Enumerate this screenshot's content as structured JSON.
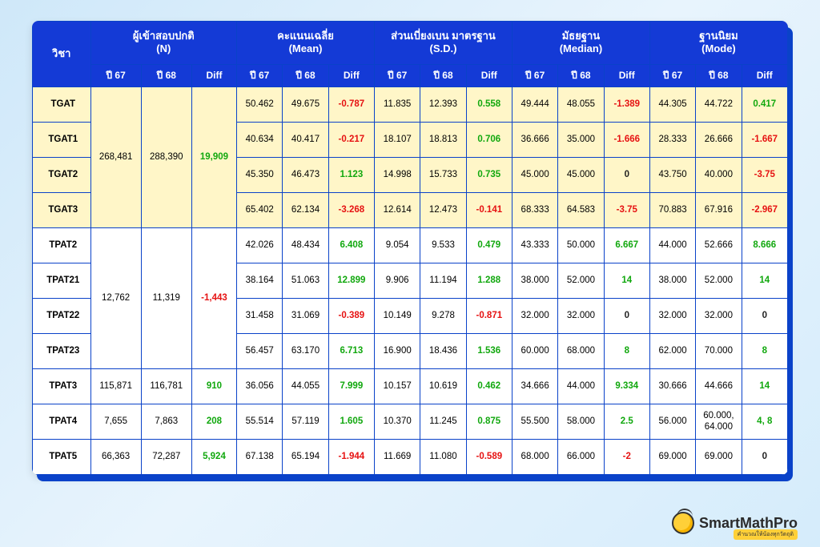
{
  "brand": {
    "name": "SmartMathPro",
    "tagline": "คำนวณให้น้องทุกวัตถุดิ"
  },
  "colors": {
    "accent": "#143ad6",
    "shadow": "#0a42c9",
    "highlight_bg": "#fff6c8",
    "pos": "#11a80e",
    "neg": "#e61212",
    "zero": "#222222",
    "card_bg": "#ffffff",
    "page_bg_from": "#cfe8f9",
    "page_bg_to": "#d5ecfb"
  },
  "head": {
    "subject": "วิชา",
    "groups": {
      "n": {
        "label_th": "ผู้เข้าสอบปกติ",
        "label_en": "(N)"
      },
      "mean": {
        "label_th": "คะแนนเฉลี่ย",
        "label_en": "(Mean)"
      },
      "sd": {
        "label_th": "ส่วนเบี่ยงเบน มาตรฐาน (S.D.)",
        "label_en": ""
      },
      "median": {
        "label_th": "มัธยฐาน",
        "label_en": "(Median)"
      },
      "mode": {
        "label_th": "ฐานนิยม",
        "label_en": "(Mode)"
      }
    },
    "sub": {
      "y67": "ปี 67",
      "y68": "ปี 68",
      "diff": "Diff"
    }
  },
  "n_groups": [
    {
      "rowspan": 4,
      "y67": "268,481",
      "y68": "288,390",
      "diff": "19,909",
      "diff_sign": "pos"
    },
    {
      "rowspan": 4,
      "y67": "12,762",
      "y68": "11,319",
      "diff": "-1,443",
      "diff_sign": "neg"
    },
    {
      "rowspan": 1,
      "y67": "115,871",
      "y68": "116,781",
      "diff": "910",
      "diff_sign": "pos"
    },
    {
      "rowspan": 1,
      "y67": "7,655",
      "y68": "7,863",
      "diff": "208",
      "diff_sign": "pos"
    },
    {
      "rowspan": 1,
      "y67": "66,363",
      "y68": "72,287",
      "diff": "5,924",
      "diff_sign": "pos"
    }
  ],
  "rows": [
    {
      "subj": "TGAT",
      "hl": true,
      "n_group": 0,
      "mean": [
        "50.462",
        "49.675",
        "-0.787",
        "neg"
      ],
      "sd": [
        "11.835",
        "12.393",
        "0.558",
        "pos"
      ],
      "median": [
        "49.444",
        "48.055",
        "-1.389",
        "neg"
      ],
      "mode": [
        "44.305",
        "44.722",
        "0.417",
        "pos"
      ]
    },
    {
      "subj": "TGAT1",
      "hl": true,
      "mean": [
        "40.634",
        "40.417",
        "-0.217",
        "neg"
      ],
      "sd": [
        "18.107",
        "18.813",
        "0.706",
        "pos"
      ],
      "median": [
        "36.666",
        "35.000",
        "-1.666",
        "neg"
      ],
      "mode": [
        "28.333",
        "26.666",
        "-1.667",
        "neg"
      ]
    },
    {
      "subj": "TGAT2",
      "hl": true,
      "mean": [
        "45.350",
        "46.473",
        "1.123",
        "pos"
      ],
      "sd": [
        "14.998",
        "15.733",
        "0.735",
        "pos"
      ],
      "median": [
        "45.000",
        "45.000",
        "0",
        "zero"
      ],
      "mode": [
        "43.750",
        "40.000",
        "-3.75",
        "neg"
      ]
    },
    {
      "subj": "TGAT3",
      "hl": true,
      "mean": [
        "65.402",
        "62.134",
        "-3.268",
        "neg"
      ],
      "sd": [
        "12.614",
        "12.473",
        "-0.141",
        "neg"
      ],
      "median": [
        "68.333",
        "64.583",
        "-3.75",
        "neg"
      ],
      "mode": [
        "70.883",
        "67.916",
        "-2.967",
        "neg"
      ]
    },
    {
      "subj": "TPAT2",
      "hl": false,
      "n_group": 1,
      "mean": [
        "42.026",
        "48.434",
        "6.408",
        "pos"
      ],
      "sd": [
        "9.054",
        "9.533",
        "0.479",
        "pos"
      ],
      "median": [
        "43.333",
        "50.000",
        "6.667",
        "pos"
      ],
      "mode": [
        "44.000",
        "52.666",
        "8.666",
        "pos"
      ]
    },
    {
      "subj": "TPAT21",
      "hl": false,
      "mean": [
        "38.164",
        "51.063",
        "12.899",
        "pos"
      ],
      "sd": [
        "9.906",
        "11.194",
        "1.288",
        "pos"
      ],
      "median": [
        "38.000",
        "52.000",
        "14",
        "pos"
      ],
      "mode": [
        "38.000",
        "52.000",
        "14",
        "pos"
      ]
    },
    {
      "subj": "TPAT22",
      "hl": false,
      "mean": [
        "31.458",
        "31.069",
        "-0.389",
        "neg"
      ],
      "sd": [
        "10.149",
        "9.278",
        "-0.871",
        "neg"
      ],
      "median": [
        "32.000",
        "32.000",
        "0",
        "zero"
      ],
      "mode": [
        "32.000",
        "32.000",
        "0",
        "zero"
      ]
    },
    {
      "subj": "TPAT23",
      "hl": false,
      "mean": [
        "56.457",
        "63.170",
        "6.713",
        "pos"
      ],
      "sd": [
        "16.900",
        "18.436",
        "1.536",
        "pos"
      ],
      "median": [
        "60.000",
        "68.000",
        "8",
        "pos"
      ],
      "mode": [
        "62.000",
        "70.000",
        "8",
        "pos"
      ]
    },
    {
      "subj": "TPAT3",
      "hl": false,
      "n_group": 2,
      "mean": [
        "36.056",
        "44.055",
        "7.999",
        "pos"
      ],
      "sd": [
        "10.157",
        "10.619",
        "0.462",
        "pos"
      ],
      "median": [
        "34.666",
        "44.000",
        "9.334",
        "pos"
      ],
      "mode": [
        "30.666",
        "44.666",
        "14",
        "pos"
      ]
    },
    {
      "subj": "TPAT4",
      "hl": false,
      "n_group": 3,
      "mean": [
        "55.514",
        "57.119",
        "1.605",
        "pos"
      ],
      "sd": [
        "10.370",
        "11.245",
        "0.875",
        "pos"
      ],
      "median": [
        "55.500",
        "58.000",
        "2.5",
        "pos"
      ],
      "mode": [
        "56.000",
        "60.000, 64.000",
        "4, 8",
        "pos"
      ]
    },
    {
      "subj": "TPAT5",
      "hl": false,
      "n_group": 4,
      "mean": [
        "67.138",
        "65.194",
        "-1.944",
        "neg"
      ],
      "sd": [
        "11.669",
        "11.080",
        "-0.589",
        "neg"
      ],
      "median": [
        "68.000",
        "66.000",
        "-2",
        "neg"
      ],
      "mode": [
        "69.000",
        "69.000",
        "0",
        "zero"
      ]
    }
  ]
}
